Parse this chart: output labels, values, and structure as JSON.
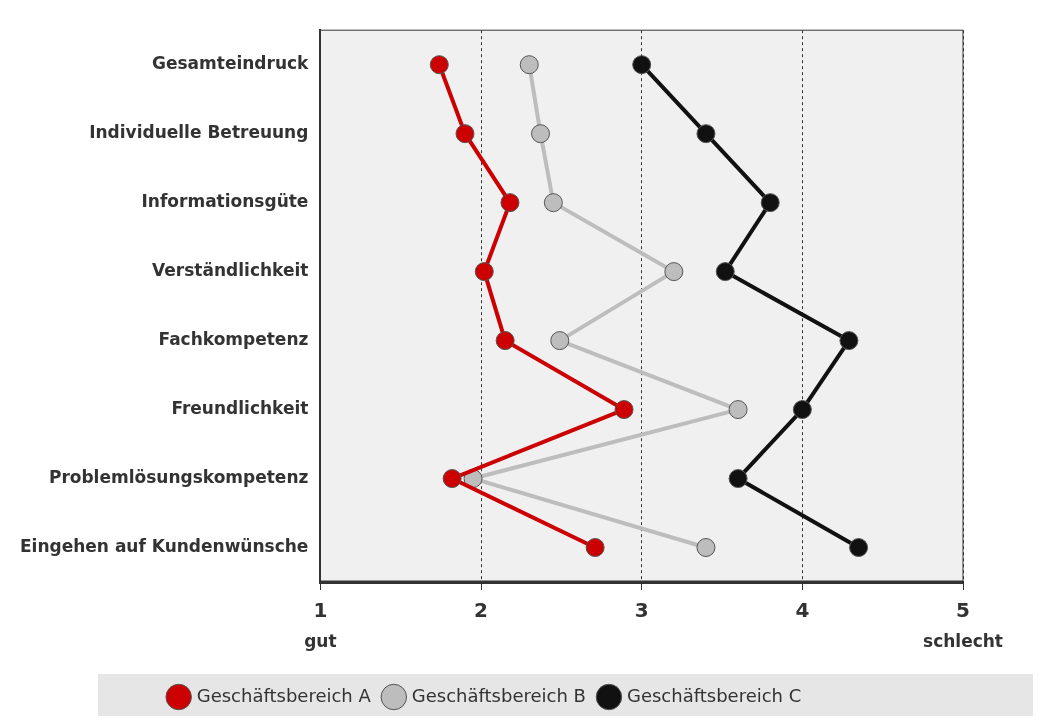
{
  "chart_data": {
    "type": "line",
    "orientation": "horizontal",
    "categories": [
      "Gesamteindruck",
      "Individuelle Betreuung",
      "Informationsgüte",
      "Verständlichkeit",
      "Fachkompetenz",
      "Freundlichkeit",
      "Problemlösungskompetenz",
      "Eingehen auf Kundenwünsche"
    ],
    "series": [
      {
        "name": "Geschäftsbereich A",
        "color": "#cc0000",
        "values": [
          1.74,
          1.9,
          2.18,
          2.02,
          2.15,
          2.89,
          1.82,
          2.71
        ]
      },
      {
        "name": "Geschäftsbereich B",
        "color": "#bdbdbd",
        "values": [
          2.3,
          2.37,
          2.45,
          3.2,
          2.49,
          3.6,
          1.95,
          3.4
        ]
      },
      {
        "name": "Geschäftsbereich C",
        "color": "#111111",
        "values": [
          3.0,
          3.4,
          3.8,
          3.52,
          4.29,
          4.0,
          3.6,
          4.35
        ]
      }
    ],
    "xlim": [
      1,
      5
    ],
    "xticks": [
      1,
      2,
      3,
      4,
      5
    ],
    "grid": "x",
    "legend": "bottom",
    "marker": "circle",
    "line_style": "solid",
    "annotations": [
      "gut",
      "schlecht"
    ]
  }
}
